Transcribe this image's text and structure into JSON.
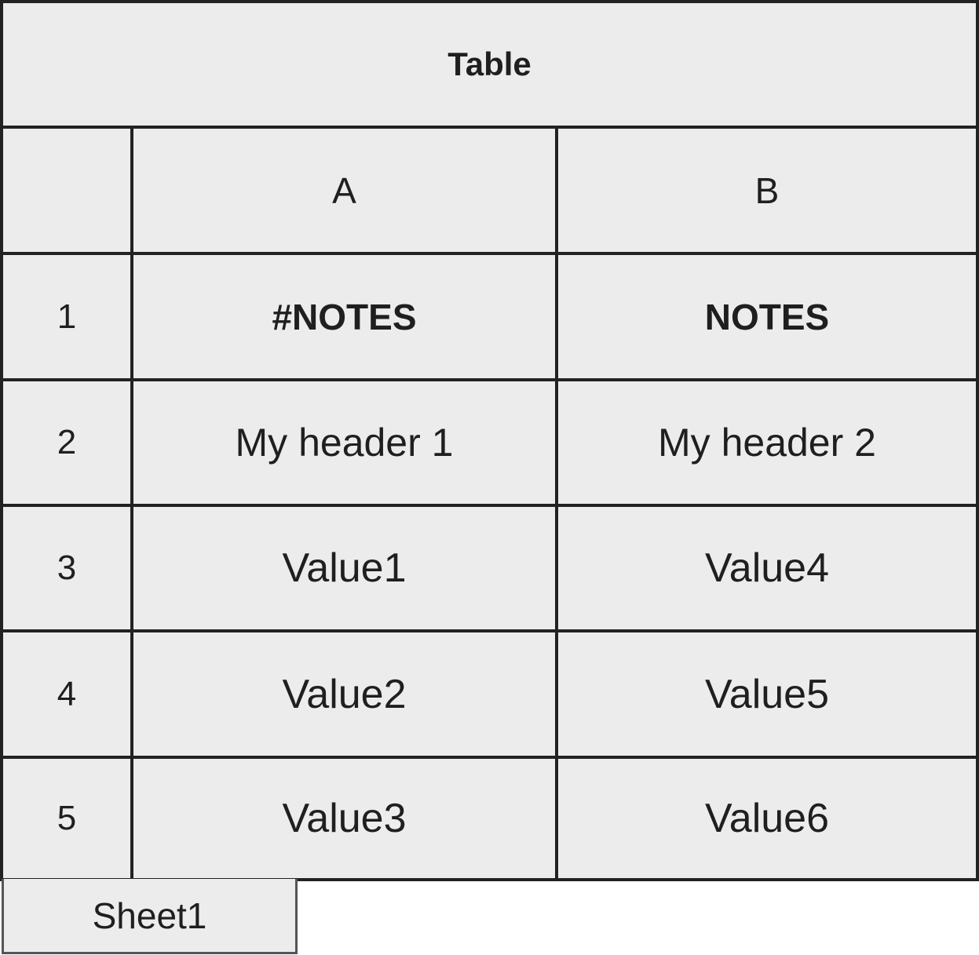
{
  "table": {
    "title": "Table",
    "columns": [
      "A",
      "B"
    ],
    "rows": [
      {
        "num": "1",
        "cells": [
          "#NOTES",
          "NOTES"
        ]
      },
      {
        "num": "2",
        "cells": [
          "My header 1",
          "My header 2"
        ]
      },
      {
        "num": "3",
        "cells": [
          "Value1",
          "Value4"
        ]
      },
      {
        "num": "4",
        "cells": [
          "Value2",
          "Value5"
        ]
      },
      {
        "num": "5",
        "cells": [
          "Value3",
          "Value6"
        ]
      }
    ]
  },
  "sheet_tabs": [
    {
      "label": "Sheet1",
      "active": true
    }
  ],
  "colors": {
    "cell_fill": "#ececec",
    "border": "#222222"
  }
}
